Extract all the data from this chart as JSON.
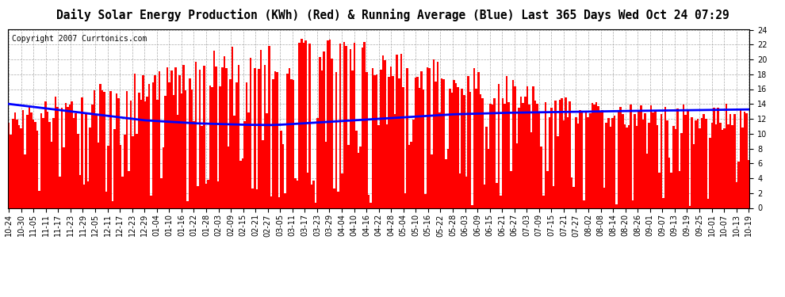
{
  "title": "Daily Solar Energy Production (KWh) (Red) & Running Average (Blue) Last 365 Days Wed Oct 24 07:29",
  "copyright": "Copyright 2007 Currtonics.com",
  "ylim": [
    0.0,
    24.0
  ],
  "yticks": [
    0.0,
    2.0,
    4.0,
    6.0,
    8.0,
    10.0,
    12.0,
    14.0,
    16.0,
    18.0,
    20.0,
    22.0,
    24.0
  ],
  "bar_color": "#FF0000",
  "avg_color": "#0000FF",
  "avg_linewidth": 2.0,
  "background_color": "#FFFFFF",
  "grid_color": "#AAAAAA",
  "title_fontsize": 10.5,
  "copyright_fontsize": 7,
  "tick_fontsize": 7,
  "x_labels": [
    "10-24",
    "10-30",
    "11-05",
    "11-11",
    "11-17",
    "11-23",
    "11-29",
    "12-05",
    "12-11",
    "12-17",
    "12-23",
    "12-29",
    "01-04",
    "01-10",
    "01-16",
    "01-22",
    "01-28",
    "02-03",
    "02-09",
    "02-15",
    "02-21",
    "02-27",
    "03-05",
    "03-11",
    "03-17",
    "03-23",
    "03-29",
    "04-04",
    "04-10",
    "04-16",
    "04-22",
    "04-28",
    "05-04",
    "05-10",
    "05-16",
    "05-22",
    "05-28",
    "06-03",
    "06-09",
    "06-15",
    "06-21",
    "06-27",
    "07-03",
    "07-09",
    "07-15",
    "07-21",
    "07-27",
    "08-02",
    "08-08",
    "08-14",
    "08-20",
    "08-26",
    "09-01",
    "09-07",
    "09-13",
    "09-19",
    "09-25",
    "10-01",
    "10-07",
    "10-13",
    "10-19"
  ],
  "avg_values": [
    14.0,
    13.8,
    13.6,
    13.4,
    13.2,
    13.0,
    12.8,
    12.6,
    12.4,
    12.2,
    12.0,
    11.8,
    11.7,
    11.6,
    11.5,
    11.4,
    11.35,
    11.3,
    11.25,
    11.2,
    11.18,
    11.15,
    11.2,
    11.3,
    11.4,
    11.5,
    11.6,
    11.7,
    11.8,
    11.9,
    12.0,
    12.1,
    12.2,
    12.3,
    12.4,
    12.5,
    12.6,
    12.65,
    12.7,
    12.75,
    12.8,
    12.82,
    12.85,
    12.88,
    12.9,
    12.92,
    12.95,
    12.97,
    13.0,
    13.02,
    13.05,
    13.07,
    13.1,
    13.12,
    13.14,
    13.16,
    13.18,
    13.2,
    13.22,
    13.24,
    13.26
  ]
}
